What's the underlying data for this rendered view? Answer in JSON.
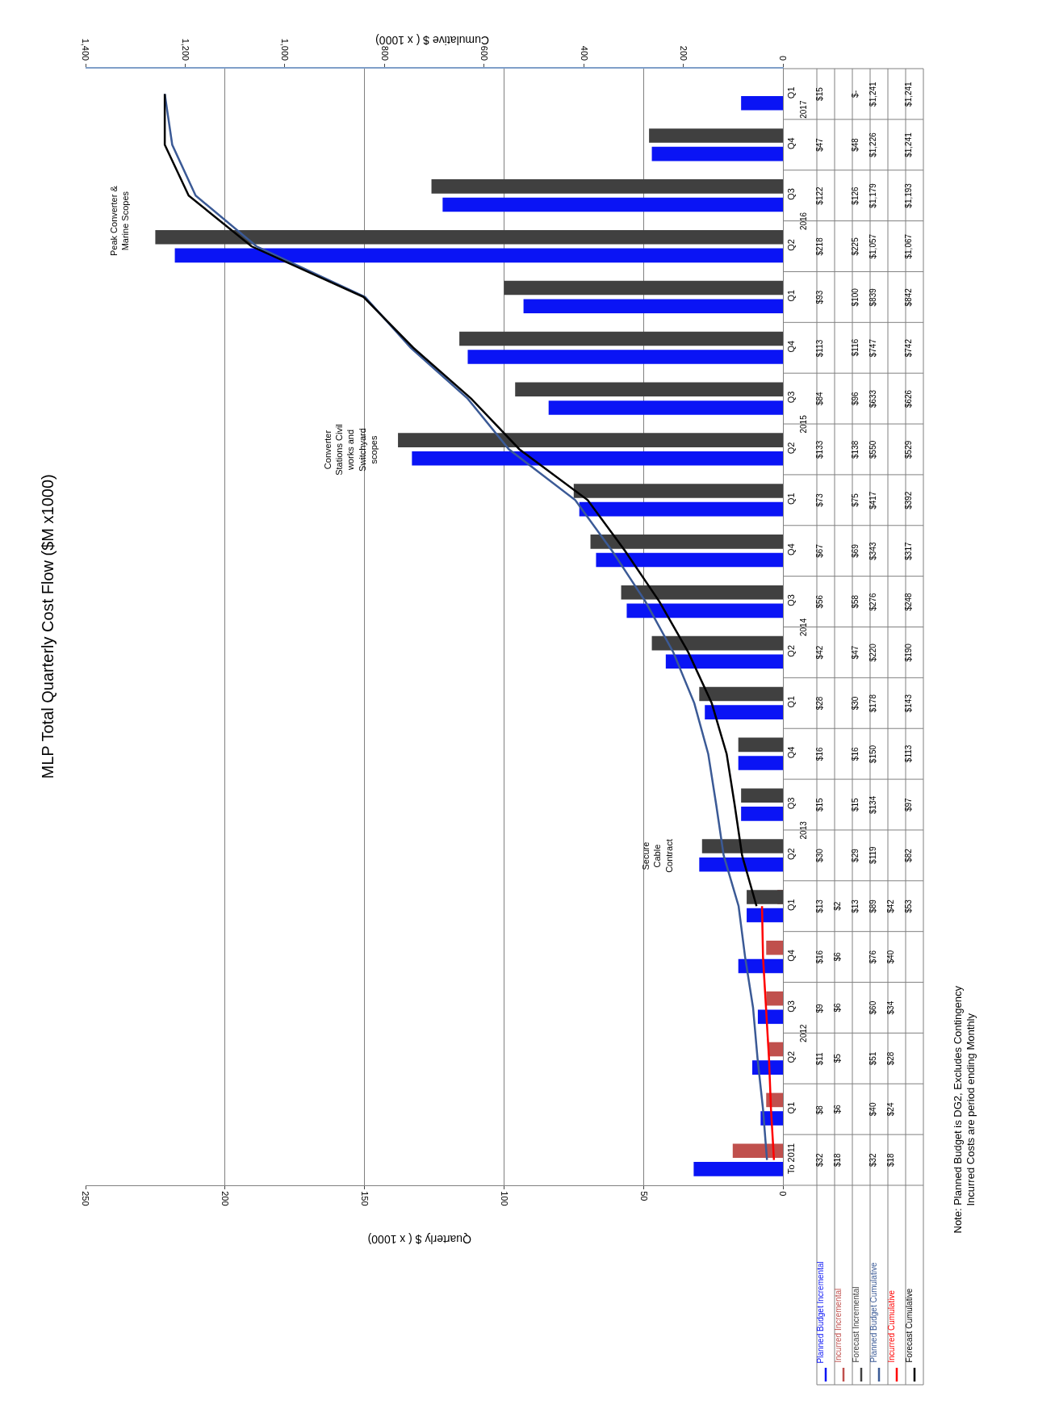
{
  "chart_data": {
    "type": "bar",
    "orientation": "horizontal",
    "title": "MLP Total Quarterly Cost Flow ($M x1000)",
    "xlabel": "Quarterly $ ( x 1000)",
    "x2label": "Cumulative $ ( x 1000)",
    "categories": [
      "Q1",
      "Q4",
      "Q3",
      "Q2",
      "Q1",
      "Q4",
      "Q3",
      "Q2",
      "Q1",
      "Q4",
      "Q3",
      "Q2",
      "Q1",
      "Q4",
      "Q3",
      "Q2",
      "Q1",
      "Q4",
      "Q3",
      "Q2",
      "Q1",
      "To 2011"
    ],
    "xlim": [
      250,
      0
    ],
    "xticks": [
      0,
      50,
      100,
      150,
      200,
      250
    ],
    "x2lim": [
      1400,
      0
    ],
    "x2ticks": [
      0,
      200,
      400,
      600,
      800,
      {
        "value": 1000,
        "label": "1,000"
      },
      {
        "value": 1200,
        "label": "1,200"
      },
      {
        "value": 1400,
        "label": "1,400"
      }
    ],
    "grid": "x",
    "series": [
      {
        "name": "Planned Budget Incremental",
        "color": "#0a14f5",
        "values": [
          15,
          47,
          122,
          218,
          93,
          113,
          84,
          133,
          73,
          67,
          56,
          42,
          28,
          16,
          15,
          30,
          13,
          16,
          9,
          11,
          8,
          32
        ],
        "value_labels": [
          "$15",
          "$47",
          "$122",
          "$218",
          "$93",
          "$113",
          "$84",
          "$133",
          "$73",
          "$67",
          "$56",
          "$42",
          "$28",
          "$16",
          "$15",
          "$30",
          "$13",
          "$16",
          "$9",
          "$11",
          "$8",
          "$32"
        ]
      },
      {
        "name": "Incurred Incremental",
        "color": "#c0504d",
        "values": [
          null,
          null,
          null,
          null,
          null,
          null,
          null,
          null,
          null,
          null,
          null,
          null,
          null,
          null,
          null,
          null,
          2,
          6,
          6,
          5,
          6,
          18
        ],
        "value_labels": [
          null,
          null,
          null,
          null,
          null,
          null,
          null,
          null,
          null,
          null,
          null,
          null,
          null,
          null,
          null,
          null,
          "$2",
          "$6",
          "$6",
          "$5",
          "$6",
          "$18"
        ]
      },
      {
        "name": "Forecast Incremental",
        "color": "#404040",
        "values": [
          0,
          48,
          126,
          225,
          100,
          116,
          96,
          138,
          75,
          69,
          58,
          47,
          30,
          16,
          15,
          29,
          13,
          null,
          null,
          null,
          null,
          null
        ],
        "value_labels": [
          "$-",
          "$48",
          "$126",
          "$225",
          "$100",
          "$116",
          "$96",
          "$138",
          "$75",
          "$69",
          "$58",
          "$47",
          "$30",
          "$16",
          "$15",
          "$29",
          "$13",
          null,
          null,
          null,
          null,
          null
        ]
      },
      {
        "name": "Planned Budget Cumulative",
        "type": "line",
        "axis": "x2",
        "color": "#3b5a96",
        "values": [
          1241,
          1226,
          1179,
          1057,
          839,
          747,
          633,
          550,
          417,
          343,
          276,
          220,
          178,
          150,
          134,
          119,
          89,
          76,
          60,
          51,
          40,
          32
        ],
        "value_labels": [
          "$1,241",
          "$1,226",
          "$1,179",
          "$1,057",
          "$839",
          "$747",
          "$633",
          "$550",
          "$417",
          "$343",
          "$276",
          "$220",
          "$178",
          "$150",
          "$134",
          "$119",
          "$89",
          "$76",
          "$60",
          "$51",
          "$40",
          "$32"
        ]
      },
      {
        "name": "Incurred Cumulative",
        "type": "line",
        "axis": "x2",
        "color": "#ff0000",
        "values": [
          null,
          null,
          null,
          null,
          null,
          null,
          null,
          null,
          null,
          null,
          null,
          null,
          null,
          null,
          null,
          null,
          42,
          40,
          34,
          28,
          24,
          18
        ],
        "value_labels": [
          null,
          null,
          null,
          null,
          null,
          null,
          null,
          null,
          null,
          null,
          null,
          null,
          null,
          null,
          null,
          null,
          "$42",
          "$40",
          "$34",
          "$28",
          "$24",
          "$18"
        ]
      },
      {
        "name": "Forecast Cumulative",
        "type": "line",
        "axis": "x2",
        "color": "#000000",
        "values": [
          1241,
          1241,
          1193,
          1067,
          842,
          742,
          626,
          529,
          392,
          317,
          248,
          190,
          143,
          113,
          97,
          82,
          53,
          null,
          null,
          null,
          null,
          null
        ],
        "value_labels": [
          "$1,241",
          "$1,241",
          "$1,193",
          "$1,067",
          "$842",
          "$742",
          "$626",
          "$529",
          "$392",
          "$317",
          "$248",
          "$190",
          "$143",
          "$113",
          "$97",
          "$82",
          "$53",
          null,
          null,
          null,
          null,
          null
        ]
      }
    ],
    "annotations": [
      "Secure\nCable\nContract",
      "Converter\nStations Civil\nworks and\nSwitchyard\nscopes",
      "Peak Converter &\nMarine Scopes",
      "2012",
      "2013",
      "2014",
      "2015",
      "2016",
      "2017",
      "Note: Planned Budget is DG2, Excludes Contingency\nIncurred Costs are period ending Monthly"
    ]
  }
}
